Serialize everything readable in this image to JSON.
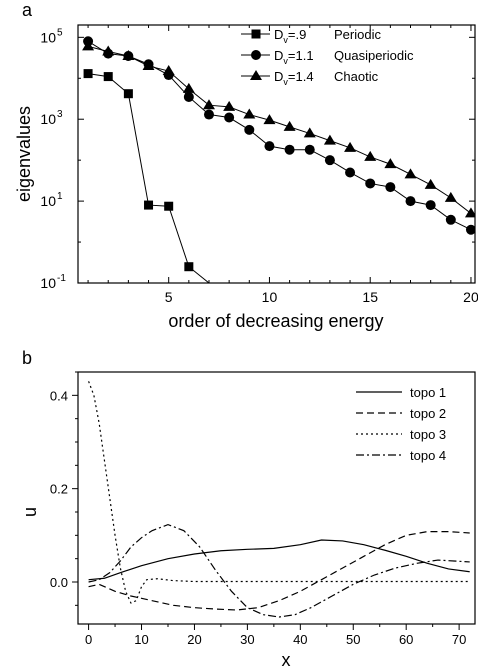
{
  "panels": [
    {
      "label": "a"
    },
    {
      "label": "b"
    }
  ],
  "chart_data": [
    {
      "type": "line",
      "panel": "a",
      "xlabel": "order of decreasing energy",
      "ylabel": "eigenvalues",
      "xlim": [
        0.5,
        20.2
      ],
      "ylim": [
        0.1,
        200000
      ],
      "yscale": "log",
      "xticks": [
        5,
        10,
        15,
        20
      ],
      "xtick_labels": [
        "5",
        "10",
        "15",
        "20"
      ],
      "yticks": [
        0.1,
        10,
        1000,
        100000
      ],
      "ytick_labels": [
        {
          "base": "10",
          "exp": "-1"
        },
        {
          "base": "10",
          "exp": "1"
        },
        {
          "base": "10",
          "exp": "3"
        },
        {
          "base": "10",
          "exp": "5"
        }
      ],
      "legend_position": "top-right",
      "series": [
        {
          "label_main": "D",
          "label_sub": "v",
          "label_value": "=.9",
          "label_desc": "Periodic",
          "marker": "square",
          "x": [
            1,
            2,
            3,
            4,
            5,
            6,
            7
          ],
          "y": [
            13000,
            11000,
            4200,
            8,
            7.5,
            0.25,
            0.1
          ]
        },
        {
          "label_main": "D",
          "label_sub": "v",
          "label_value": "=1.1",
          "label_desc": "Quasiperiodic",
          "marker": "circle",
          "x": [
            1,
            2,
            3,
            4,
            5,
            6,
            7,
            8,
            9,
            10,
            11,
            12,
            13,
            14,
            15,
            16,
            17,
            18,
            19,
            20
          ],
          "y": [
            80000,
            40000,
            35000,
            22000,
            12000,
            3500,
            1300,
            1100,
            550,
            220,
            180,
            180,
            100,
            50,
            27,
            22,
            10,
            8,
            3.5,
            2
          ]
        },
        {
          "label_main": "D",
          "label_sub": "v",
          "label_value": "=1.4",
          "label_desc": "Chaotic",
          "marker": "triangle",
          "x": [
            1,
            2,
            3,
            4,
            5,
            6,
            7,
            8,
            9,
            10,
            11,
            12,
            13,
            14,
            15,
            16,
            17,
            18,
            19,
            20
          ],
          "y": [
            60000,
            45000,
            35000,
            20000,
            15000,
            5500,
            2200,
            2000,
            1300,
            950,
            650,
            450,
            300,
            200,
            120,
            80,
            45,
            25,
            12,
            5
          ]
        }
      ]
    },
    {
      "type": "line",
      "panel": "b",
      "xlabel": "x",
      "ylabel": "u",
      "xlim": [
        -2,
        73
      ],
      "ylim": [
        -0.09,
        0.45
      ],
      "xticks": [
        0,
        10,
        20,
        30,
        40,
        50,
        60,
        70
      ],
      "xtick_labels": [
        "0",
        "10",
        "20",
        "30",
        "40",
        "50",
        "60",
        "70"
      ],
      "yticks": [
        0.0,
        0.2,
        0.4
      ],
      "ytick_labels": [
        "0.0",
        "0.2",
        "0.4"
      ],
      "legend_position": "top-right",
      "series": [
        {
          "name": "topo 1",
          "dash": "solid",
          "x": [
            0,
            3,
            6,
            10,
            15,
            20,
            25,
            30,
            35,
            40,
            44,
            48,
            52,
            56,
            60,
            64,
            68,
            72
          ],
          "y": [
            0.005,
            0.008,
            0.02,
            0.035,
            0.05,
            0.06,
            0.067,
            0.07,
            0.072,
            0.08,
            0.09,
            0.088,
            0.08,
            0.068,
            0.055,
            0.04,
            0.028,
            0.022
          ]
        },
        {
          "name": "topo 2",
          "dash": "dashed",
          "x": [
            0,
            2,
            5,
            8,
            12,
            16,
            20,
            24,
            28,
            32,
            36,
            40,
            44,
            48,
            52,
            56,
            60,
            64,
            68,
            72
          ],
          "y": [
            -0.01,
            -0.005,
            -0.02,
            -0.03,
            -0.04,
            -0.05,
            -0.055,
            -0.058,
            -0.06,
            -0.055,
            -0.04,
            -0.02,
            0.005,
            0.03,
            0.055,
            0.08,
            0.1,
            0.108,
            0.108,
            0.105
          ]
        },
        {
          "name": "topo 3",
          "dash": "dotted",
          "x": [
            0,
            1,
            2,
            3,
            4,
            5,
            6,
            7,
            8,
            9,
            10,
            11,
            13,
            16,
            20,
            30,
            40,
            50,
            60,
            72
          ],
          "y": [
            0.43,
            0.4,
            0.34,
            0.26,
            0.18,
            0.1,
            0.03,
            -0.02,
            -0.045,
            -0.04,
            -0.01,
            0.005,
            0.007,
            0.003,
            0.001,
            0.001,
            0.001,
            0.001,
            0.001,
            0.001
          ]
        },
        {
          "name": "topo 4",
          "dash": "dashdot",
          "x": [
            0,
            2,
            4,
            6,
            8,
            10,
            12,
            15,
            18,
            21,
            24,
            27,
            30,
            33,
            36,
            39,
            42,
            46,
            50,
            54,
            58,
            62,
            66,
            69,
            72
          ],
          "y": [
            0.0,
            0.005,
            0.02,
            0.045,
            0.075,
            0.095,
            0.11,
            0.123,
            0.11,
            0.075,
            0.025,
            -0.02,
            -0.055,
            -0.07,
            -0.075,
            -0.07,
            -0.055,
            -0.03,
            -0.005,
            0.015,
            0.03,
            0.04,
            0.047,
            0.045,
            0.043
          ]
        }
      ]
    }
  ]
}
